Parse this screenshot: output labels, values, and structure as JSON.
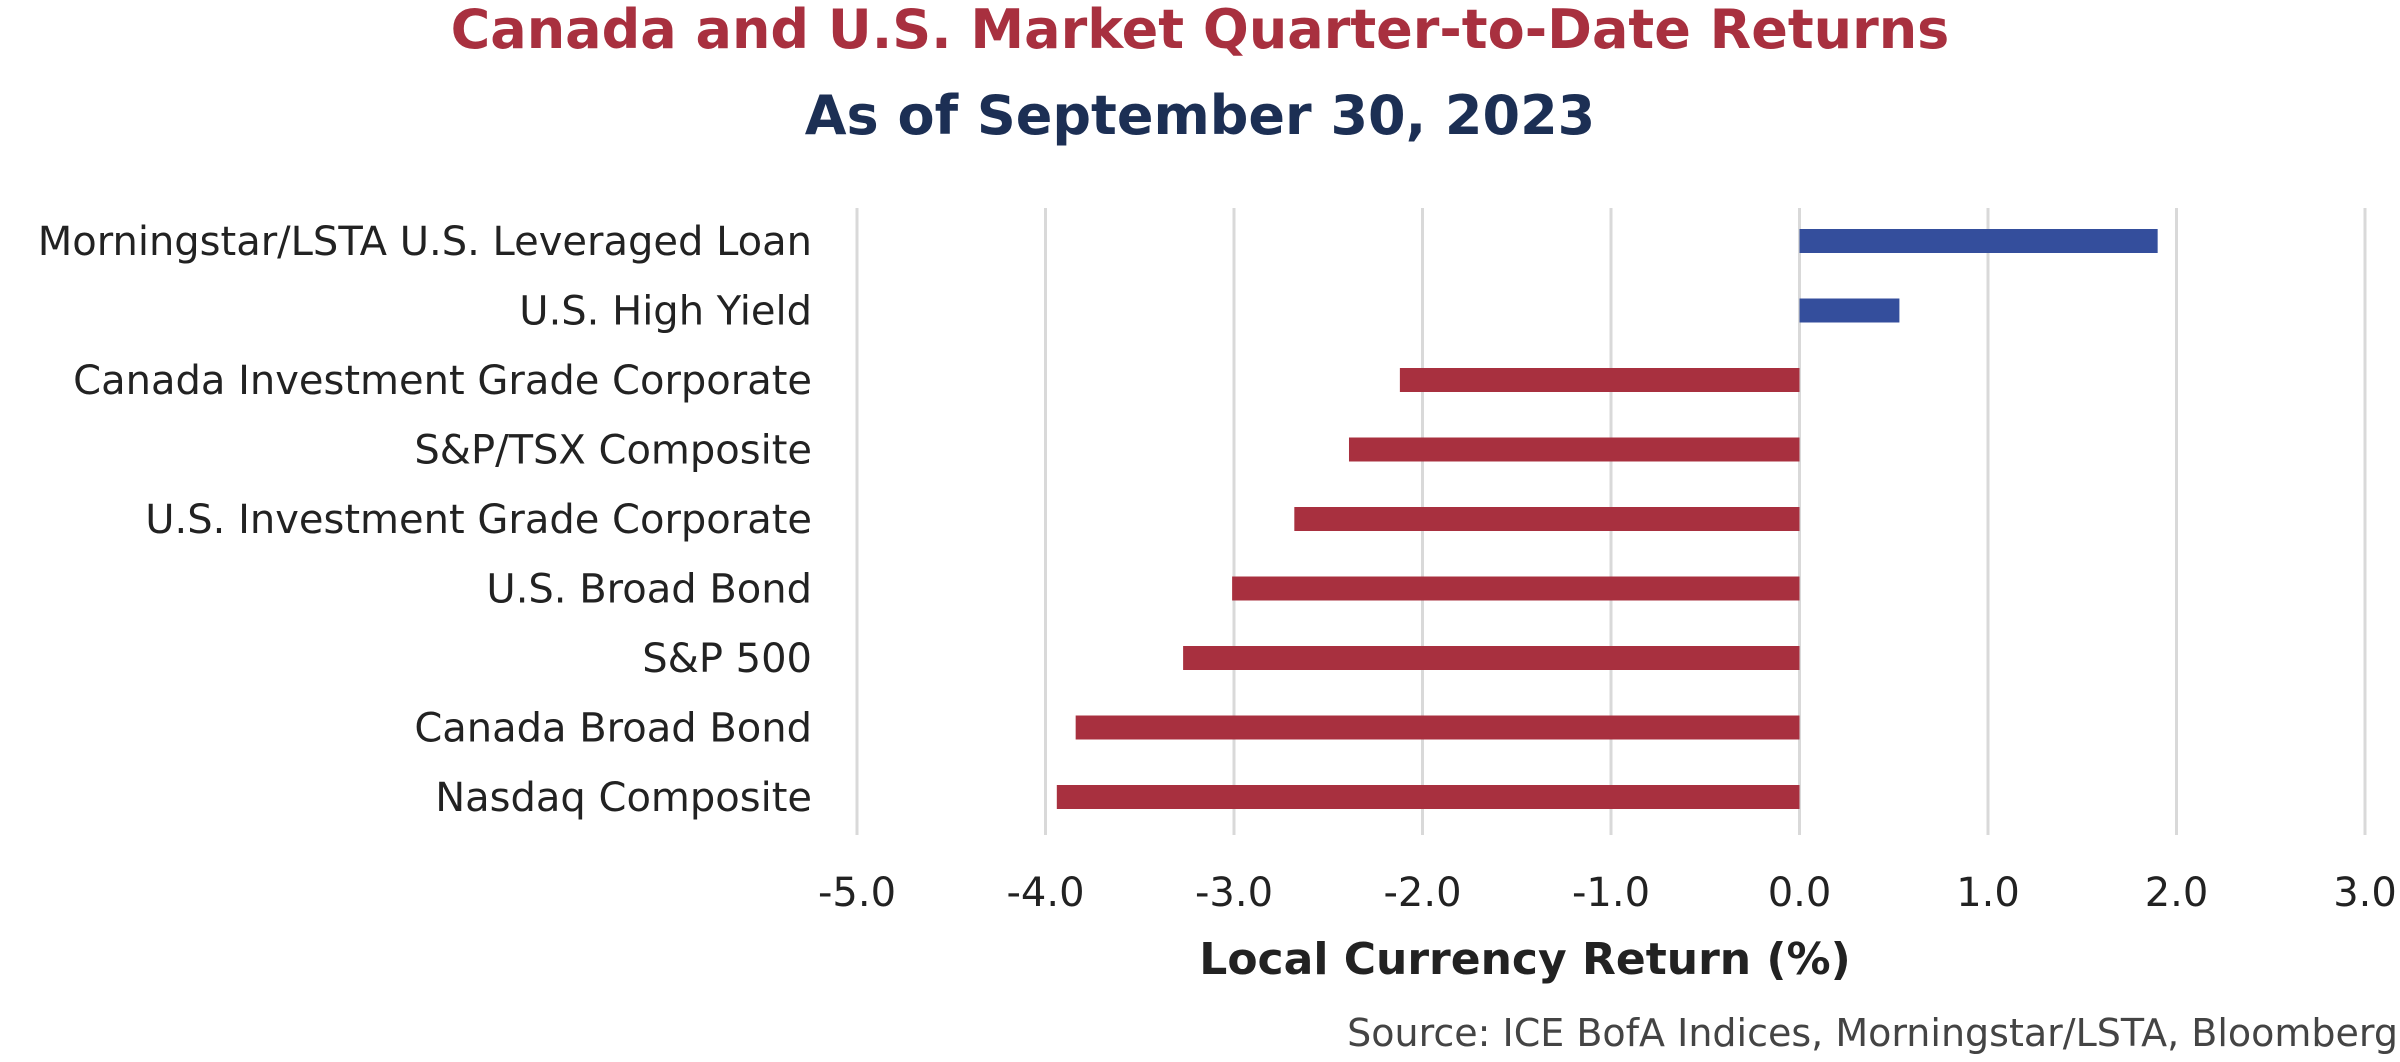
{
  "chart_data": {
    "type": "bar",
    "orientation": "horizontal",
    "title": "Canada and U.S. Market Quarter-to-Date Returns",
    "subtitle": "As of September 30, 2023",
    "xlabel": "Local Currency Return (%)",
    "source": "Source: ICE BofA Indices, Morningstar/LSTA, Bloomberg",
    "categories": [
      "Morningstar/LSTA U.S. Leveraged Loan",
      "U.S. High Yield",
      "Canada Investment Grade Corporate",
      "S&P/TSX Composite",
      "U.S. Investment Grade Corporate",
      "U.S. Broad Bond",
      "S&P 500",
      "Canada Broad Bond",
      "Nasdaq Composite"
    ],
    "values": [
      1.9,
      0.53,
      -2.12,
      -2.39,
      -2.68,
      -3.01,
      -3.27,
      -3.84,
      -3.94
    ],
    "xlim": [
      -5.0,
      3.0
    ],
    "xticks": [
      -5.0,
      -4.0,
      -3.0,
      -2.0,
      -1.0,
      0.0,
      1.0,
      2.0,
      3.0
    ],
    "xtick_labels": [
      "-5.0",
      "-4.0",
      "-3.0",
      "-2.0",
      "-1.0",
      "0.0",
      "1.0",
      "2.0",
      "3.0"
    ],
    "grid": "vertical",
    "legend": "none",
    "colors": {
      "positive": "#344E9C",
      "negative": "#A8303F",
      "title": "#A8303F",
      "subtitle": "#1C2F54",
      "grid": "#D9D9D9"
    }
  }
}
